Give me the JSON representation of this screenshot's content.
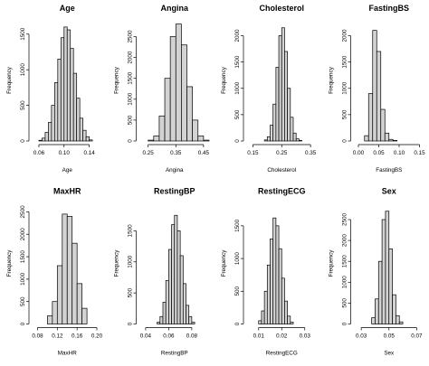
{
  "chart_data": [
    {
      "type": "bar",
      "title": "Age",
      "xlabel": "Age",
      "ylabel": "Frequency",
      "xticks": [
        "0.06",
        "0.10",
        "0.14"
      ],
      "xtick_values": [
        0.06,
        0.1,
        0.14
      ],
      "xlim": [
        0.05,
        0.16
      ],
      "yticks": [
        0,
        500,
        1000,
        1500
      ],
      "ylim": [
        0,
        1700
      ],
      "bin_start": 0.06,
      "bin_width": 0.005,
      "values": [
        10,
        40,
        120,
        260,
        500,
        820,
        1150,
        1450,
        1600,
        1560,
        1300,
        950,
        600,
        320,
        150,
        60,
        15
      ]
    },
    {
      "type": "bar",
      "title": "Angina",
      "xlabel": "Angina",
      "ylabel": "Frequency",
      "xticks": [
        "0.25",
        "0.35",
        "0.45"
      ],
      "xtick_values": [
        0.25,
        0.35,
        0.45
      ],
      "xlim": [
        0.22,
        0.47
      ],
      "yticks": [
        0,
        500,
        1000,
        1500,
        2000,
        2500
      ],
      "ylim": [
        0,
        2900
      ],
      "bin_start": 0.25,
      "bin_width": 0.02,
      "values": [
        20,
        120,
        600,
        1500,
        2500,
        2800,
        2300,
        1300,
        500,
        120,
        20
      ]
    },
    {
      "type": "bar",
      "title": "Cholesterol",
      "xlabel": "Cholesterol",
      "ylabel": "Frequency",
      "xticks": [
        "0.15",
        "0.25",
        "0.35"
      ],
      "xtick_values": [
        0.15,
        0.25,
        0.35
      ],
      "xlim": [
        0.13,
        0.37
      ],
      "yticks": [
        0,
        500,
        1000,
        1500,
        2000
      ],
      "ylim": [
        0,
        2300
      ],
      "bin_start": 0.19,
      "bin_width": 0.01,
      "values": [
        20,
        80,
        300,
        700,
        1400,
        2000,
        2150,
        1700,
        1000,
        450,
        150,
        40,
        10
      ]
    },
    {
      "type": "bar",
      "title": "FastingBS",
      "xlabel": "FastingBS",
      "ylabel": "Frequency",
      "xticks": [
        "0.00",
        "0.05",
        "0.10",
        "0.15"
      ],
      "xtick_values": [
        0.0,
        0.05,
        0.1,
        0.15
      ],
      "xlim": [
        -0.01,
        0.16
      ],
      "yticks": [
        0,
        500,
        1000,
        1500,
        2000
      ],
      "ylim": [
        0,
        2300
      ],
      "bin_start": 0.015,
      "bin_width": 0.01,
      "values": [
        100,
        900,
        2100,
        1700,
        600,
        150,
        30,
        10
      ]
    },
    {
      "type": "bar",
      "title": "MaxHR",
      "xlabel": "MaxHR",
      "ylabel": "Frequency",
      "xticks": [
        "0.08",
        "0.12",
        "0.16",
        "0.20"
      ],
      "xtick_values": [
        0.08,
        0.12,
        0.16,
        0.2
      ],
      "xlim": [
        0.07,
        0.21
      ],
      "yticks": [
        0,
        500,
        1000,
        1500,
        2000,
        2500
      ],
      "ylim": [
        0,
        2700
      ],
      "bin_start": 0.1,
      "bin_width": 0.01,
      "values": [
        180,
        500,
        1300,
        2450,
        2400,
        1800,
        900,
        350
      ]
    },
    {
      "type": "bar",
      "title": "RestingBP",
      "xlabel": "RestingBP",
      "ylabel": "Frequency",
      "xticks": [
        "0.04",
        "0.06",
        "0.08"
      ],
      "xtick_values": [
        0.04,
        0.06,
        0.08
      ],
      "xlim": [
        0.035,
        0.095
      ],
      "yticks": [
        0,
        500,
        1000,
        1500
      ],
      "ylim": [
        0,
        1950
      ],
      "bin_start": 0.05,
      "bin_width": 0.0025,
      "values": [
        30,
        120,
        350,
        700,
        1200,
        1600,
        1750,
        1500,
        1100,
        650,
        300,
        120,
        30
      ]
    },
    {
      "type": "bar",
      "title": "RestingECG",
      "xlabel": "RestingECG",
      "ylabel": "Frequency",
      "xticks": [
        "0.01",
        "0.02",
        "0.03"
      ],
      "xtick_values": [
        0.01,
        0.02,
        0.03
      ],
      "xlim": [
        0.005,
        0.035
      ],
      "yticks": [
        0,
        500,
        1000,
        1500
      ],
      "ylim": [
        0,
        1850
      ],
      "bin_start": 0.01,
      "bin_width": 0.00125,
      "values": [
        50,
        200,
        500,
        900,
        1300,
        1620,
        1500,
        1150,
        700,
        350,
        120,
        30
      ]
    },
    {
      "type": "bar",
      "title": "Sex",
      "xlabel": "Sex",
      "ylabel": "Frequency",
      "xticks": [
        "0.03",
        "0.05",
        "0.07"
      ],
      "xtick_values": [
        0.03,
        0.05,
        0.07
      ],
      "xlim": [
        0.025,
        0.075
      ],
      "yticks": [
        0,
        500,
        1000,
        1500,
        2000,
        2500
      ],
      "ylim": [
        0,
        2900
      ],
      "bin_start": 0.0375,
      "bin_width": 0.0025,
      "values": [
        150,
        600,
        1500,
        2500,
        2700,
        1800,
        700,
        200,
        50
      ]
    }
  ]
}
